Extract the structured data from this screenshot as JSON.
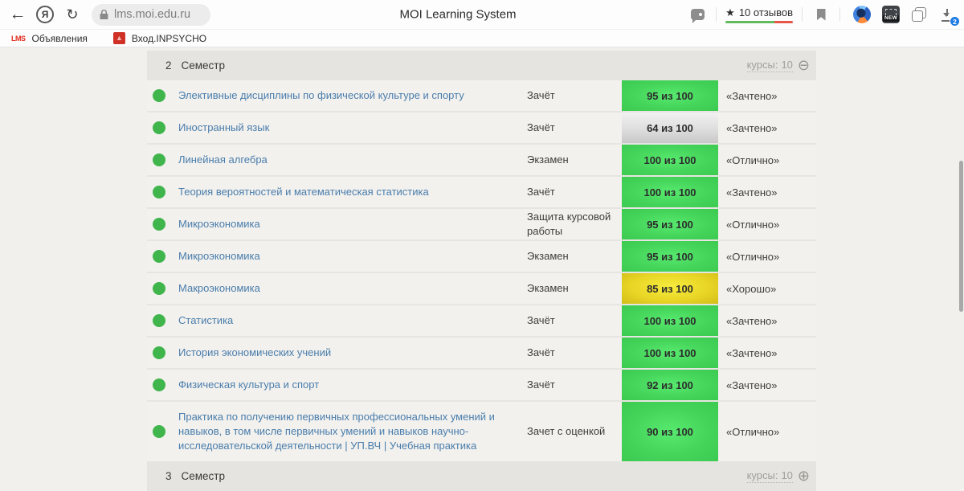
{
  "browser": {
    "back_glyph": "←",
    "refresh_glyph": "↻",
    "yandex_logo_glyph": "Я",
    "url": "lms.moi.edu.ru",
    "page_title": "MOI Learning System",
    "reviews_star": "★",
    "reviews_label": "10 отзывов",
    "screenshot_new_label": "NEW",
    "downloads_badge": "2"
  },
  "bookmarks": [
    {
      "icon_text": "LMS",
      "label": "Объявления"
    },
    {
      "icon_text": "▲",
      "label": "Вход.INPSYCHO"
    }
  ],
  "colors": {
    "badge_green": "#45d55b",
    "badge_silver": "#dcdcdc",
    "badge_gold": "#e9d626",
    "status_dot_green": "#3fb54b",
    "course_link_blue": "#4a7dab",
    "reviews_underline_green": "#63ba60",
    "reviews_underline_red": "#e4574a",
    "download_badge_blue": "#1c7be4",
    "section_header_bg": "#e6e4e0",
    "page_bg": "#f1f0ed"
  },
  "sections": [
    {
      "number": "2",
      "title": "Семестр",
      "courses_label": "курсы:",
      "courses_count": "10",
      "toggle_icon": "collapse-icon",
      "toggle_glyph": "⊖",
      "rows": [
        {
          "course": "Элективные дисциплины по физической культуре и спорту",
          "exam": "Зачёт",
          "score": "95 из 100",
          "score_style": "green",
          "grade": "«Зачтено»"
        },
        {
          "course": "Иностранный язык",
          "exam": "Зачёт",
          "score": "64 из 100",
          "score_style": "silver",
          "grade": "«Зачтено»"
        },
        {
          "course": "Линейная алгебра",
          "exam": "Экзамен",
          "score": "100 из 100",
          "score_style": "green",
          "grade": "«Отлично»"
        },
        {
          "course": "Теория вероятностей и математическая статистика",
          "exam": "Зачёт",
          "score": "100 из 100",
          "score_style": "green",
          "grade": "«Зачтено»"
        },
        {
          "course": "Микроэкономика",
          "exam": "Защита курсовой работы",
          "score": "95 из 100",
          "score_style": "green",
          "grade": "«Отлично»"
        },
        {
          "course": "Микроэкономика",
          "exam": "Экзамен",
          "score": "95 из 100",
          "score_style": "green",
          "grade": "«Отлично»"
        },
        {
          "course": "Макроэкономика",
          "exam": "Экзамен",
          "score": "85 из 100",
          "score_style": "gold",
          "grade": "«Хорошо»"
        },
        {
          "course": "Статистика",
          "exam": "Зачёт",
          "score": "100 из 100",
          "score_style": "green",
          "grade": "«Зачтено»"
        },
        {
          "course": "История экономических учений",
          "exam": "Зачёт",
          "score": "100 из 100",
          "score_style": "green",
          "grade": "«Зачтено»"
        },
        {
          "course": "Физическая культура и спорт",
          "exam": "Зачёт",
          "score": "92 из 100",
          "score_style": "green",
          "grade": "«Зачтено»"
        },
        {
          "course": "Практика по получению первичных профессиональных умений и навыков, в том числе первичных умений и навыков научно-исследовательской деятельности | УП.ВЧ | Учебная практика",
          "exam": "Зачет с оценкой",
          "score": "90 из 100",
          "score_style": "green",
          "grade": "«Отлично»"
        }
      ]
    },
    {
      "number": "3",
      "title": "Семестр",
      "courses_label": "курсы:",
      "courses_count": "10",
      "toggle_icon": "expand-icon",
      "toggle_glyph": "⊕",
      "rows": []
    }
  ]
}
